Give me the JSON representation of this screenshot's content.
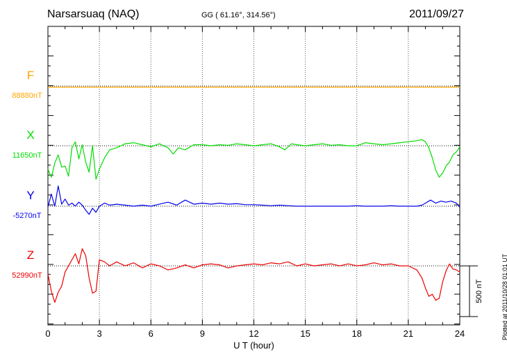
{
  "header": {
    "station": "Narsarsuaq (NAQ)",
    "coords": "GG ( 61.16°, 314.56°)",
    "date": "2011/09/27"
  },
  "footer_note": "Plotted at 2011/10/28 01:01 UT",
  "scale_label": "500 nT",
  "chart_data": {
    "type": "line",
    "title": "Narsarsuaq (NAQ)",
    "xlabel": "U T (hour)",
    "xlim": [
      0,
      24
    ],
    "xticks": [
      0,
      3,
      6,
      9,
      12,
      15,
      18,
      21,
      24
    ],
    "xtick_labels": [
      "0",
      "3",
      "6",
      "9",
      "12",
      "15",
      "18",
      "21",
      "24"
    ],
    "scale_bar_nT": 500,
    "grid": true,
    "y_units": "nT (relative to baseline, each channel offset)",
    "series": [
      {
        "name": "F",
        "baseline_label": "88880nT",
        "color": "#ffa500",
        "x": [
          0,
          24
        ],
        "values": [
          -10,
          -10
        ]
      },
      {
        "name": "X",
        "baseline_label": "11650nT",
        "color": "#00dd00",
        "x": [
          0,
          0.2,
          0.4,
          0.6,
          0.8,
          1.0,
          1.2,
          1.4,
          1.6,
          1.8,
          2.0,
          2.2,
          2.4,
          2.6,
          2.8,
          3.0,
          3.3,
          3.6,
          4.0,
          4.5,
          5.0,
          5.5,
          6.0,
          6.5,
          7.0,
          7.3,
          7.6,
          8.0,
          8.5,
          9.0,
          9.5,
          10.0,
          10.5,
          11.0,
          11.5,
          12.0,
          12.5,
          13.0,
          13.5,
          13.8,
          14.2,
          14.5,
          15.0,
          15.5,
          16.0,
          16.5,
          17.0,
          17.5,
          18.0,
          18.5,
          19.0,
          19.5,
          20.0,
          20.5,
          21.0,
          21.5,
          21.8,
          22.0,
          22.2,
          22.4,
          22.6,
          22.8,
          23.0,
          23.2,
          23.4,
          23.6,
          23.8,
          24.0
        ],
        "values": [
          -230,
          -310,
          -170,
          -90,
          -210,
          -200,
          -300,
          -20,
          40,
          -130,
          10,
          -160,
          -260,
          0,
          -330,
          -230,
          -120,
          -40,
          -20,
          20,
          30,
          10,
          -10,
          20,
          -20,
          -80,
          -20,
          -40,
          10,
          10,
          0,
          10,
          5,
          20,
          10,
          0,
          10,
          20,
          -10,
          -40,
          20,
          10,
          0,
          10,
          20,
          5,
          10,
          0,
          0,
          30,
          20,
          10,
          20,
          30,
          40,
          50,
          60,
          40,
          -20,
          -120,
          -240,
          -310,
          -270,
          -200,
          -160,
          -90,
          -60,
          -10
        ]
      },
      {
        "name": "Y",
        "baseline_label": "-5270nT",
        "color": "#0000ee",
        "x": [
          0,
          0.2,
          0.4,
          0.6,
          0.8,
          1.0,
          1.2,
          1.4,
          1.6,
          1.8,
          2.0,
          2.2,
          2.4,
          2.6,
          2.8,
          3.0,
          3.3,
          3.6,
          4.0,
          4.5,
          5.0,
          5.5,
          6.0,
          6.5,
          7.0,
          7.5,
          8.0,
          8.5,
          9.0,
          9.5,
          10.0,
          10.5,
          11.0,
          11.5,
          12.0,
          12.5,
          13.0,
          13.5,
          14.0,
          14.5,
          15.0,
          15.5,
          16.0,
          16.5,
          17.0,
          17.5,
          18.0,
          18.5,
          19.0,
          19.5,
          20.0,
          20.5,
          21.0,
          21.5,
          21.8,
          22.0,
          22.3,
          22.6,
          22.9,
          23.2,
          23.5,
          23.8,
          24.0
        ],
        "values": [
          -10,
          120,
          0,
          200,
          20,
          70,
          10,
          30,
          0,
          40,
          10,
          -40,
          -80,
          -20,
          -60,
          0,
          30,
          10,
          20,
          10,
          0,
          10,
          0,
          20,
          40,
          10,
          60,
          20,
          30,
          20,
          30,
          20,
          25,
          15,
          15,
          10,
          5,
          10,
          5,
          0,
          0,
          0,
          0,
          0,
          0,
          0,
          5,
          0,
          0,
          0,
          5,
          0,
          0,
          0,
          10,
          30,
          60,
          30,
          50,
          40,
          50,
          30,
          -10
        ]
      },
      {
        "name": "Z",
        "baseline_label": "52990nT",
        "color": "#ee0000",
        "x": [
          0,
          0.2,
          0.4,
          0.6,
          0.8,
          1.0,
          1.2,
          1.4,
          1.6,
          1.8,
          2.0,
          2.2,
          2.4,
          2.6,
          2.8,
          3.0,
          3.3,
          3.6,
          4.0,
          4.5,
          5.0,
          5.5,
          6.0,
          6.5,
          7.0,
          7.5,
          8.0,
          8.5,
          9.0,
          9.5,
          10.0,
          10.5,
          11.0,
          11.5,
          12.0,
          12.5,
          13.0,
          13.5,
          14.0,
          14.5,
          15.0,
          15.5,
          16.0,
          16.5,
          17.0,
          17.5,
          18.0,
          18.5,
          19.0,
          19.5,
          20.0,
          20.5,
          21.0,
          21.5,
          21.8,
          22.0,
          22.2,
          22.4,
          22.6,
          22.8,
          23.0,
          23.2,
          23.4,
          23.6,
          23.8,
          24.0
        ],
        "values": [
          -80,
          -250,
          -360,
          -260,
          -200,
          -60,
          0,
          60,
          120,
          20,
          170,
          100,
          -120,
          -270,
          -250,
          60,
          40,
          0,
          40,
          0,
          30,
          -20,
          20,
          0,
          -40,
          -20,
          10,
          -20,
          10,
          20,
          10,
          -20,
          0,
          10,
          20,
          10,
          30,
          20,
          40,
          0,
          20,
          0,
          10,
          20,
          0,
          20,
          0,
          10,
          30,
          10,
          20,
          0,
          0,
          -40,
          -120,
          -220,
          -300,
          -280,
          -340,
          -320,
          -160,
          -50,
          20,
          -30,
          -40,
          -60
        ]
      }
    ]
  }
}
